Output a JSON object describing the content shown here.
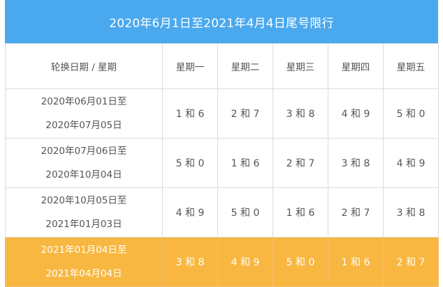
{
  "title": "2020年6月1日至2021年4月4日尾号限行",
  "colors": {
    "header_bg": "#4aa8ee",
    "highlight_bg": "#f8b740"
  },
  "table": {
    "corner_label": "轮换日期 / 星期",
    "weekdays": [
      "星期一",
      "星期二",
      "星期三",
      "星期四",
      "星期五"
    ],
    "rows": [
      {
        "period_start": "2020年06月01日至",
        "period_end": "2020年07月05日",
        "values": [
          "1 和 6",
          "2 和 7",
          "3 和 8",
          "4 和 9",
          "5 和 0"
        ],
        "highlighted": false
      },
      {
        "period_start": "2020年07月06日至",
        "period_end": "2020年10月04日",
        "values": [
          "5 和 0",
          "1 和 6",
          "2 和 7",
          "3 和 8",
          "4 和 9"
        ],
        "highlighted": false
      },
      {
        "period_start": "2020年10月05日至",
        "period_end": "2021年01月03日",
        "values": [
          "4 和 9",
          "5 和 0",
          "1 和 6",
          "2 和 7",
          "3 和 8"
        ],
        "highlighted": false
      },
      {
        "period_start": "2021年01月04日至",
        "period_end": "2021年04月04日",
        "values": [
          "3 和 8",
          "4 和 9",
          "5 和 0",
          "1 和 6",
          "2 和 7"
        ],
        "highlighted": true
      }
    ]
  }
}
